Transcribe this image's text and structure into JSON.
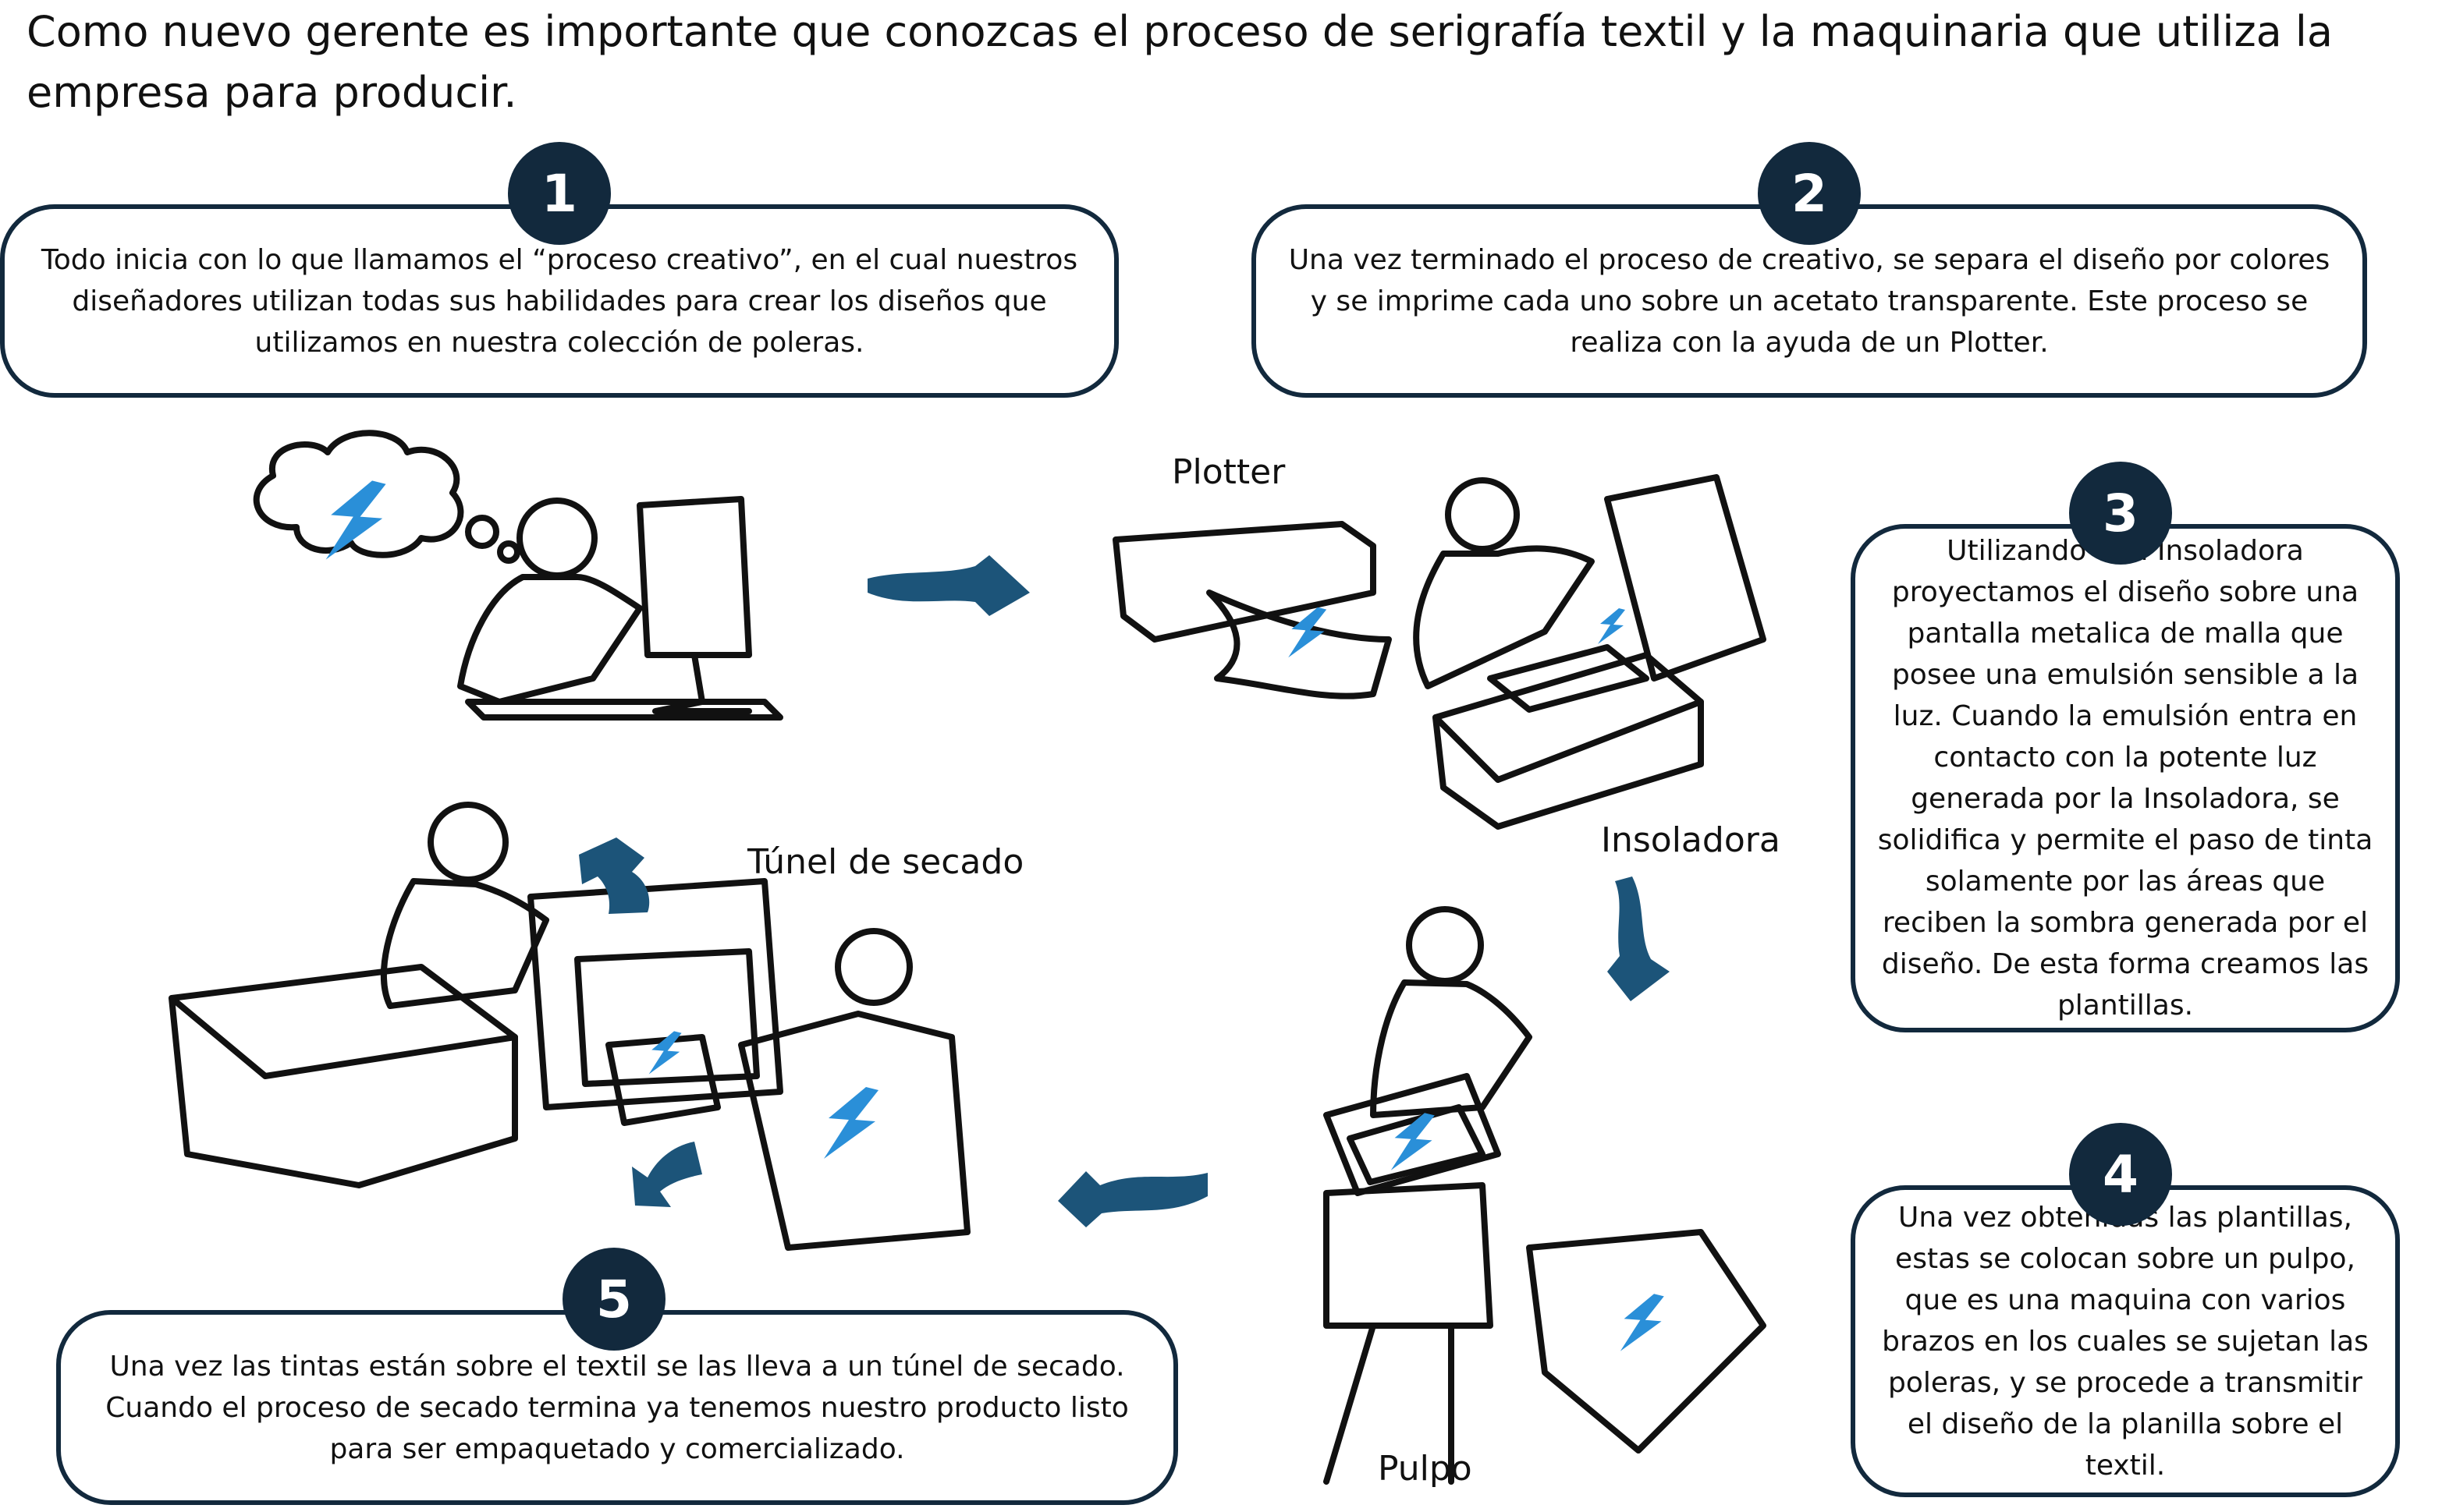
{
  "intro": "Como nuevo gerente es importante que conozcas el proceso de serigrafía textil y la maquinaria que utiliza la empresa para producir.",
  "steps": [
    {
      "number": "1",
      "text": "Todo inicia con lo que llamamos el “proceso creativo”, en el cual nuestros diseñadores utilizan todas sus habilidades para crear los diseños que utilizamos en nuestra colección de poleras."
    },
    {
      "number": "2",
      "text": "Una vez terminado el proceso de creativo, se separa el diseño por colores y se imprime cada uno sobre un acetato transparente. Este proceso se realiza con la ayuda de un Plotter."
    },
    {
      "number": "3",
      "text": "Utilizando una Insoladora proyectamos el diseño sobre una pantalla metalica de malla que posee una emulsión sensible a la luz. Cuando la emulsión entra en contacto con la potente luz generada por la Insoladora, se solidifica y permite el paso de tinta solamente por las áreas que reciben la sombra generada por el diseño. De esta forma creamos las plantillas."
    },
    {
      "number": "4",
      "text": "Una vez obtenidas las plantillas, estas se colocan sobre un pulpo, que es una maquina con varios brazos en los cuales se sujetan las poleras, y se procede a transmitir el diseño de la planilla sobre el textil."
    },
    {
      "number": "5",
      "text": "Una vez las tintas están sobre el textil se las lleva a un túnel de secado. Cuando el proceso de secado termina ya tenemos nuestro producto listo para ser empaquetado y comercializado."
    }
  ],
  "labels": {
    "plotter": "Plotter",
    "insoladora": "Insoladora",
    "pulpo": "Pulpo",
    "tunel": "Túnel de secado"
  },
  "colors": {
    "badge": "#12293d",
    "arrow": "#1c5479",
    "bolt": "#2a8fd8"
  }
}
